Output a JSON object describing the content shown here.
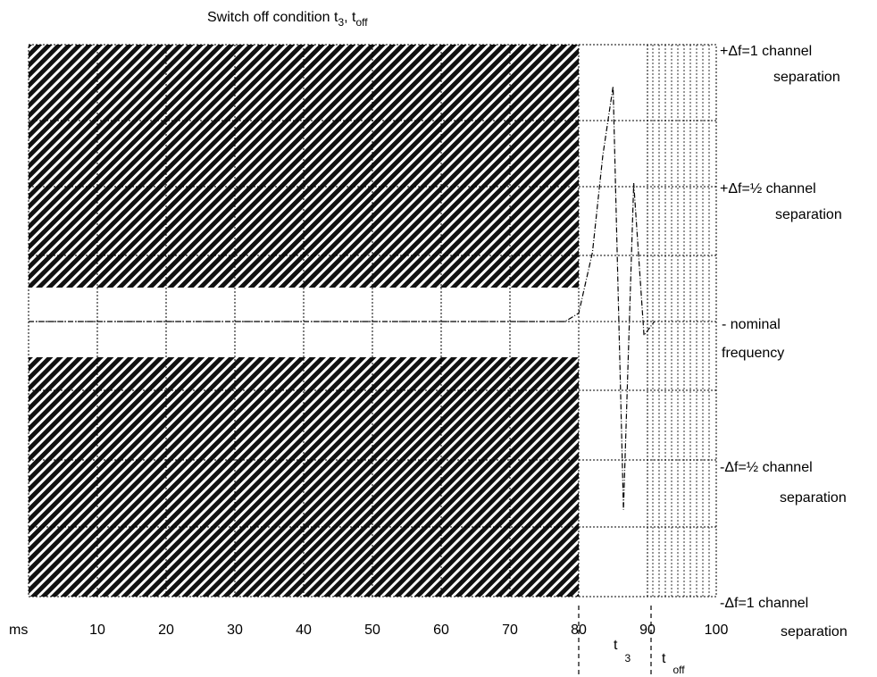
{
  "title": {
    "text": "Switch off condition t",
    "sub1": "3",
    "sep": ", t",
    "sub2": "off"
  },
  "x_axis": {
    "unit": "ms",
    "ticks": [
      10,
      20,
      30,
      40,
      50,
      60,
      70,
      80,
      90,
      100
    ],
    "range": [
      0,
      100
    ]
  },
  "y_labels": {
    "plus_one": {
      "line1": "+Δf=1 channel",
      "line2": "separation"
    },
    "plus_half": {
      "line1": "+Δf=½ channel",
      "line2": "separation"
    },
    "nominal": {
      "line1": "- nominal",
      "line2": "frequency"
    },
    "minus_half": {
      "line1": "-Δf=½ channel",
      "line2": "separation"
    },
    "minus_one": {
      "line1": "-Δf=1 channel",
      "line2": "separation"
    }
  },
  "markers": {
    "t3": {
      "label": "t",
      "sub": "3",
      "time_ms": 82
    },
    "toff": {
      "label": "t",
      "sub": "off",
      "time_ms": 90
    }
  },
  "frequency_curve": {
    "x_ms": [
      0,
      78,
      80,
      82,
      83.5,
      85,
      86.5,
      88,
      89.5,
      91
    ],
    "y_channel": [
      0,
      0,
      0.03,
      0.25,
      0.6,
      0.85,
      -0.68,
      0.5,
      -0.05,
      0
    ]
  }
}
